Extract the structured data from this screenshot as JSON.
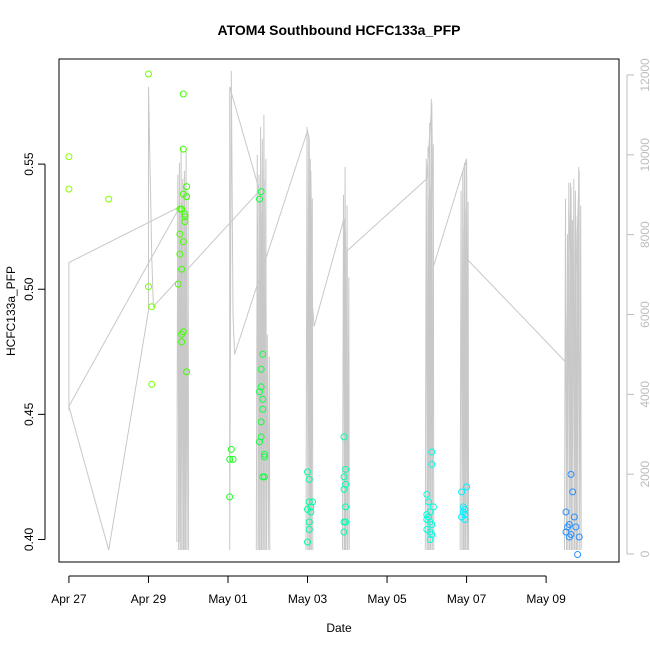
{
  "chart_data": {
    "type": "scatter",
    "title": "ATOM4 Southbound HCFC133a_PFP",
    "xlabel": "Date",
    "ylabel": "HCFC133a_PFP",
    "xlim": [
      "2016-04-26 18:00",
      "2016-05-10 20:00"
    ],
    "ylim": [
      0.391,
      0.592
    ],
    "y2lim": [
      -200,
      12400
    ],
    "x_ticks": [
      {
        "label": "Apr 27",
        "date": "2016-04-27"
      },
      {
        "label": "Apr 29",
        "date": "2016-04-29"
      },
      {
        "label": "May 01",
        "date": "2016-05-01"
      },
      {
        "label": "May 03",
        "date": "2016-05-03"
      },
      {
        "label": "May 05",
        "date": "2016-05-05"
      },
      {
        "label": "May 07",
        "date": "2016-05-07"
      },
      {
        "label": "May 09",
        "date": "2016-05-09"
      }
    ],
    "y_ticks": [
      "0.40",
      "0.45",
      "0.50",
      "0.55"
    ],
    "y2_ticks": [
      "0",
      "2000",
      "4000",
      "6000",
      "8000",
      "10000",
      "12000"
    ],
    "grid": false,
    "colors": {
      "axis": "#000000",
      "altitude_line": "#c8c8c8",
      "right_ticks": "#bdbdbd"
    },
    "points": [
      {
        "t": "2016-04-27 00:00",
        "y": 0.553,
        "color": "#88ff00"
      },
      {
        "t": "2016-04-27 00:00",
        "y": 0.54,
        "color": "#88ff00"
      },
      {
        "t": "2016-04-28 00:00",
        "y": 0.536,
        "color": "#80ff00"
      },
      {
        "t": "2016-04-29 00:00",
        "y": 0.586,
        "color": "#70ff00"
      },
      {
        "t": "2016-04-29 00:00",
        "y": 0.501,
        "color": "#70ff00"
      },
      {
        "t": "2016-04-29 02:00",
        "y": 0.493,
        "color": "#70ff00"
      },
      {
        "t": "2016-04-29 02:00",
        "y": 0.462,
        "color": "#70ff00"
      },
      {
        "t": "2016-04-29 19:00",
        "y": 0.532,
        "color": "#4cff00"
      },
      {
        "t": "2016-04-29 19:00",
        "y": 0.522,
        "color": "#4cff00"
      },
      {
        "t": "2016-04-29 19:00",
        "y": 0.514,
        "color": "#4cff00"
      },
      {
        "t": "2016-04-29 18:00",
        "y": 0.502,
        "color": "#4cff00"
      },
      {
        "t": "2016-04-29 21:00",
        "y": 0.578,
        "color": "#40ff00"
      },
      {
        "t": "2016-04-29 21:00",
        "y": 0.556,
        "color": "#40ff00"
      },
      {
        "t": "2016-04-29 21:00",
        "y": 0.538,
        "color": "#40ff00"
      },
      {
        "t": "2016-04-29 20:00",
        "y": 0.532,
        "color": "#40ff00"
      },
      {
        "t": "2016-04-29 22:00",
        "y": 0.53,
        "color": "#40ff00"
      },
      {
        "t": "2016-04-29 22:00",
        "y": 0.529,
        "color": "#40ff00"
      },
      {
        "t": "2016-04-29 22:00",
        "y": 0.527,
        "color": "#40ff00"
      },
      {
        "t": "2016-04-29 21:00",
        "y": 0.519,
        "color": "#40ff00"
      },
      {
        "t": "2016-04-29 20:00",
        "y": 0.508,
        "color": "#40ff00"
      },
      {
        "t": "2016-04-29 21:00",
        "y": 0.483,
        "color": "#40ff00"
      },
      {
        "t": "2016-04-29 20:00",
        "y": 0.482,
        "color": "#40ff00"
      },
      {
        "t": "2016-04-29 20:00",
        "y": 0.479,
        "color": "#40ff00"
      },
      {
        "t": "2016-04-29 23:00",
        "y": 0.541,
        "color": "#38ff00"
      },
      {
        "t": "2016-04-29 23:00",
        "y": 0.537,
        "color": "#38ff00"
      },
      {
        "t": "2016-04-29 23:00",
        "y": 0.467,
        "color": "#38ff00"
      },
      {
        "t": "2016-05-01 02:00",
        "y": 0.436,
        "color": "#20ff20"
      },
      {
        "t": "2016-05-01 01:00",
        "y": 0.432,
        "color": "#20ff20"
      },
      {
        "t": "2016-05-01 03:00",
        "y": 0.432,
        "color": "#20ff20"
      },
      {
        "t": "2016-05-01 01:00",
        "y": 0.417,
        "color": "#20ff20"
      },
      {
        "t": "2016-05-01 20:00",
        "y": 0.539,
        "color": "#10ff40"
      },
      {
        "t": "2016-05-01 19:00",
        "y": 0.536,
        "color": "#10ff40"
      },
      {
        "t": "2016-05-01 21:00",
        "y": 0.474,
        "color": "#10ff40"
      },
      {
        "t": "2016-05-01 20:00",
        "y": 0.468,
        "color": "#10ff40"
      },
      {
        "t": "2016-05-01 20:00",
        "y": 0.461,
        "color": "#10ff40"
      },
      {
        "t": "2016-05-01 19:00",
        "y": 0.459,
        "color": "#10ff40"
      },
      {
        "t": "2016-05-01 21:00",
        "y": 0.456,
        "color": "#10ff40"
      },
      {
        "t": "2016-05-01 21:00",
        "y": 0.452,
        "color": "#10ff40"
      },
      {
        "t": "2016-05-01 20:00",
        "y": 0.447,
        "color": "#10ff40"
      },
      {
        "t": "2016-05-01 20:00",
        "y": 0.441,
        "color": "#10ff40"
      },
      {
        "t": "2016-05-01 19:00",
        "y": 0.439,
        "color": "#10ff40"
      },
      {
        "t": "2016-05-01 22:00",
        "y": 0.434,
        "color": "#10ff40"
      },
      {
        "t": "2016-05-01 22:00",
        "y": 0.433,
        "color": "#10ff40"
      },
      {
        "t": "2016-05-01 21:00",
        "y": 0.425,
        "color": "#10ff40"
      },
      {
        "t": "2016-05-01 22:00",
        "y": 0.425,
        "color": "#10ff40"
      },
      {
        "t": "2016-05-03 00:00",
        "y": 0.427,
        "color": "#00ffa0"
      },
      {
        "t": "2016-05-03 01:00",
        "y": 0.424,
        "color": "#00ffa0"
      },
      {
        "t": "2016-05-03 01:00",
        "y": 0.415,
        "color": "#00ffa0"
      },
      {
        "t": "2016-05-03 03:00",
        "y": 0.415,
        "color": "#00ffa0"
      },
      {
        "t": "2016-05-03 02:00",
        "y": 0.413,
        "color": "#00ffa0"
      },
      {
        "t": "2016-05-03 00:00",
        "y": 0.412,
        "color": "#00ffa0"
      },
      {
        "t": "2016-05-03 02:00",
        "y": 0.411,
        "color": "#00ffa0"
      },
      {
        "t": "2016-05-03 01:00",
        "y": 0.407,
        "color": "#00ffa0"
      },
      {
        "t": "2016-05-03 01:00",
        "y": 0.404,
        "color": "#00ffa0"
      },
      {
        "t": "2016-05-03 00:00",
        "y": 0.399,
        "color": "#00ffa0"
      },
      {
        "t": "2016-05-03 22:00",
        "y": 0.441,
        "color": "#00ffb0"
      },
      {
        "t": "2016-05-03 23:00",
        "y": 0.428,
        "color": "#00ffb0"
      },
      {
        "t": "2016-05-03 22:00",
        "y": 0.425,
        "color": "#00ffb0"
      },
      {
        "t": "2016-05-03 23:00",
        "y": 0.422,
        "color": "#00ffb0"
      },
      {
        "t": "2016-05-03 22:00",
        "y": 0.42,
        "color": "#00ffb0"
      },
      {
        "t": "2016-05-03 23:00",
        "y": 0.413,
        "color": "#00ffb0"
      },
      {
        "t": "2016-05-03 22:00",
        "y": 0.407,
        "color": "#00ffb0"
      },
      {
        "t": "2016-05-03 23:00",
        "y": 0.407,
        "color": "#00ffb0"
      },
      {
        "t": "2016-05-03 22:00",
        "y": 0.403,
        "color": "#00ffb0"
      },
      {
        "t": "2016-05-06 03:00",
        "y": 0.435,
        "color": "#00ffe0"
      },
      {
        "t": "2016-05-06 03:00",
        "y": 0.43,
        "color": "#00ffe0"
      },
      {
        "t": "2016-05-06 00:00",
        "y": 0.418,
        "color": "#00ffe0"
      },
      {
        "t": "2016-05-06 01:00",
        "y": 0.415,
        "color": "#00ffe0"
      },
      {
        "t": "2016-05-06 04:00",
        "y": 0.413,
        "color": "#00ffe0"
      },
      {
        "t": "2016-05-06 02:00",
        "y": 0.411,
        "color": "#00ffe0"
      },
      {
        "t": "2016-05-06 00:00",
        "y": 0.41,
        "color": "#00ffe0"
      },
      {
        "t": "2016-05-06 01:00",
        "y": 0.409,
        "color": "#00ffe0"
      },
      {
        "t": "2016-05-06 00:00",
        "y": 0.408,
        "color": "#00ffe0"
      },
      {
        "t": "2016-05-06 02:00",
        "y": 0.407,
        "color": "#00ffe0"
      },
      {
        "t": "2016-05-06 03:00",
        "y": 0.406,
        "color": "#00ffe0"
      },
      {
        "t": "2016-05-06 00:00",
        "y": 0.404,
        "color": "#00ffe0"
      },
      {
        "t": "2016-05-06 02:00",
        "y": 0.403,
        "color": "#00ffe0"
      },
      {
        "t": "2016-05-06 03:00",
        "y": 0.402,
        "color": "#00ffe0"
      },
      {
        "t": "2016-05-06 02:00",
        "y": 0.4,
        "color": "#00ffe0"
      },
      {
        "t": "2016-05-06 21:00",
        "y": 0.419,
        "color": "#00f0ff"
      },
      {
        "t": "2016-05-07 00:00",
        "y": 0.421,
        "color": "#00f0ff"
      },
      {
        "t": "2016-05-06 22:00",
        "y": 0.413,
        "color": "#00f0ff"
      },
      {
        "t": "2016-05-06 23:00",
        "y": 0.412,
        "color": "#00f0ff"
      },
      {
        "t": "2016-05-06 22:00",
        "y": 0.411,
        "color": "#00f0ff"
      },
      {
        "t": "2016-05-06 23:00",
        "y": 0.41,
        "color": "#00f0ff"
      },
      {
        "t": "2016-05-06 21:00",
        "y": 0.409,
        "color": "#00f0ff"
      },
      {
        "t": "2016-05-06 23:00",
        "y": 0.408,
        "color": "#00f0ff"
      },
      {
        "t": "2016-05-09 15:00",
        "y": 0.426,
        "color": "#2a90ff"
      },
      {
        "t": "2016-05-09 16:00",
        "y": 0.419,
        "color": "#2a90ff"
      },
      {
        "t": "2016-05-09 12:00",
        "y": 0.411,
        "color": "#2a90ff"
      },
      {
        "t": "2016-05-09 17:00",
        "y": 0.409,
        "color": "#2a90ff"
      },
      {
        "t": "2016-05-09 14:00",
        "y": 0.406,
        "color": "#2a90ff"
      },
      {
        "t": "2016-05-09 13:00",
        "y": 0.405,
        "color": "#2a90ff"
      },
      {
        "t": "2016-05-09 18:00",
        "y": 0.405,
        "color": "#2a90ff"
      },
      {
        "t": "2016-05-09 12:00",
        "y": 0.403,
        "color": "#2a90ff"
      },
      {
        "t": "2016-05-09 15:00",
        "y": 0.402,
        "color": "#2a90ff"
      },
      {
        "t": "2016-05-09 14:00",
        "y": 0.401,
        "color": "#2a90ff"
      },
      {
        "t": "2016-05-09 20:00",
        "y": 0.401,
        "color": "#2a90ff"
      },
      {
        "t": "2016-05-09 19:00",
        "y": 0.394,
        "color": "#2a90ff"
      }
    ],
    "altitude_line": [
      {
        "t": "2016-04-27 00:00",
        "alt": 3600
      },
      {
        "t": "2016-04-27 00:00",
        "alt": 7300
      },
      {
        "t": "2016-04-29 19:00",
        "alt": 8700
      },
      {
        "t": "2016-04-27 00:00",
        "alt": 3700
      },
      {
        "t": "2016-04-28 00:00",
        "alt": 100
      },
      {
        "t": "2016-04-29 00:00",
        "alt": 6100
      },
      {
        "t": "2016-04-29 00:00",
        "alt": 11700
      },
      {
        "t": "2016-04-29 02:00",
        "alt": 7400
      },
      {
        "t": "2016-04-29 03:00",
        "alt": 6200
      },
      {
        "t": "2016-05-01 19:00",
        "alt": 9100
      },
      {
        "t": "2016-05-01 01:00",
        "alt": 11700
      },
      {
        "t": "2016-05-01 01:00",
        "alt": 100
      },
      {
        "t": "2016-05-01 02:00",
        "alt": 12100
      },
      {
        "t": "2016-05-01 03:00",
        "alt": 6000
      },
      {
        "t": "2016-05-01 04:00",
        "alt": 5000
      },
      {
        "t": "2016-05-03 00:00",
        "alt": 10600
      },
      {
        "t": "2016-05-03 01:00",
        "alt": 10400
      },
      {
        "t": "2016-05-03 02:00",
        "alt": 100
      },
      {
        "t": "2016-05-03 02:00",
        "alt": 9600
      },
      {
        "t": "2016-05-03 03:00",
        "alt": 6200
      },
      {
        "t": "2016-05-03 04:00",
        "alt": 5700
      },
      {
        "t": "2016-05-03 22:00",
        "alt": 8400
      },
      {
        "t": "2016-05-03 23:00",
        "alt": 100
      },
      {
        "t": "2016-05-04 00:00",
        "alt": 7600
      },
      {
        "t": "2016-05-06 00:00",
        "alt": 9400
      },
      {
        "t": "2016-05-06 03:00",
        "alt": 11300
      },
      {
        "t": "2016-05-06 04:00",
        "alt": 7200
      },
      {
        "t": "2016-05-07 00:00",
        "alt": 9900
      },
      {
        "t": "2016-05-07 01:00",
        "alt": 100
      },
      {
        "t": "2016-05-07 00:00",
        "alt": 7400
      },
      {
        "t": "2016-05-09 12:00",
        "alt": 4800
      },
      {
        "t": "2016-05-09 15:00",
        "alt": 9200
      },
      {
        "t": "2016-05-09 16:00",
        "alt": 4200
      },
      {
        "t": "2016-05-09 20:00",
        "alt": 9600
      },
      {
        "t": "2016-05-09 20:00",
        "alt": 5800
      }
    ],
    "altitude_spikes": [
      {
        "t": "2016-04-29 18:00",
        "min": 300,
        "max": 9500
      },
      {
        "t": "2016-04-29 19:00",
        "min": 100,
        "max": 9800
      },
      {
        "t": "2016-04-29 20:00",
        "min": 100,
        "max": 10200
      },
      {
        "t": "2016-04-29 21:00",
        "min": 100,
        "max": 9400
      },
      {
        "t": "2016-04-29 22:00",
        "min": 100,
        "max": 9600
      },
      {
        "t": "2016-04-29 23:00",
        "min": 100,
        "max": 10100
      },
      {
        "t": "2016-05-01 18:00",
        "min": 100,
        "max": 10000
      },
      {
        "t": "2016-05-01 19:00",
        "min": 100,
        "max": 9500
      },
      {
        "t": "2016-05-01 20:00",
        "min": 100,
        "max": 10700
      },
      {
        "t": "2016-05-01 21:00",
        "min": 100,
        "max": 10400
      },
      {
        "t": "2016-05-01 22:00",
        "min": 100,
        "max": 11000
      },
      {
        "t": "2016-05-02 00:00",
        "min": 100,
        "max": 5500
      },
      {
        "t": "2016-05-03 00:00",
        "min": 100,
        "max": 10700
      },
      {
        "t": "2016-05-03 01:00",
        "min": 100,
        "max": 10500
      },
      {
        "t": "2016-05-03 02:00",
        "min": 100,
        "max": 9900
      },
      {
        "t": "2016-05-03 22:00",
        "min": 100,
        "max": 9000
      },
      {
        "t": "2016-05-03 23:00",
        "min": 100,
        "max": 9700
      },
      {
        "t": "2016-05-04 00:00",
        "min": 100,
        "max": 7700
      },
      {
        "t": "2016-05-06 00:00",
        "min": 100,
        "max": 9900
      },
      {
        "t": "2016-05-06 01:00",
        "min": 100,
        "max": 10200
      },
      {
        "t": "2016-05-06 02:00",
        "min": 100,
        "max": 10800
      },
      {
        "t": "2016-05-06 03:00",
        "min": 100,
        "max": 11400
      },
      {
        "t": "2016-05-06 21:00",
        "min": 100,
        "max": 9100
      },
      {
        "t": "2016-05-06 22:00",
        "min": 100,
        "max": 9600
      },
      {
        "t": "2016-05-06 23:00",
        "min": 100,
        "max": 9800
      },
      {
        "t": "2016-05-07 00:00",
        "min": 100,
        "max": 9800
      },
      {
        "t": "2016-05-09 12:00",
        "min": 100,
        "max": 8900
      },
      {
        "t": "2016-05-09 14:00",
        "min": 100,
        "max": 9300
      },
      {
        "t": "2016-05-09 15:00",
        "min": 100,
        "max": 9300
      },
      {
        "t": "2016-05-09 17:00",
        "min": 100,
        "max": 9400
      },
      {
        "t": "2016-05-09 18:00",
        "min": 100,
        "max": 9100
      },
      {
        "t": "2016-05-09 20:00",
        "min": 100,
        "max": 9700
      }
    ]
  }
}
